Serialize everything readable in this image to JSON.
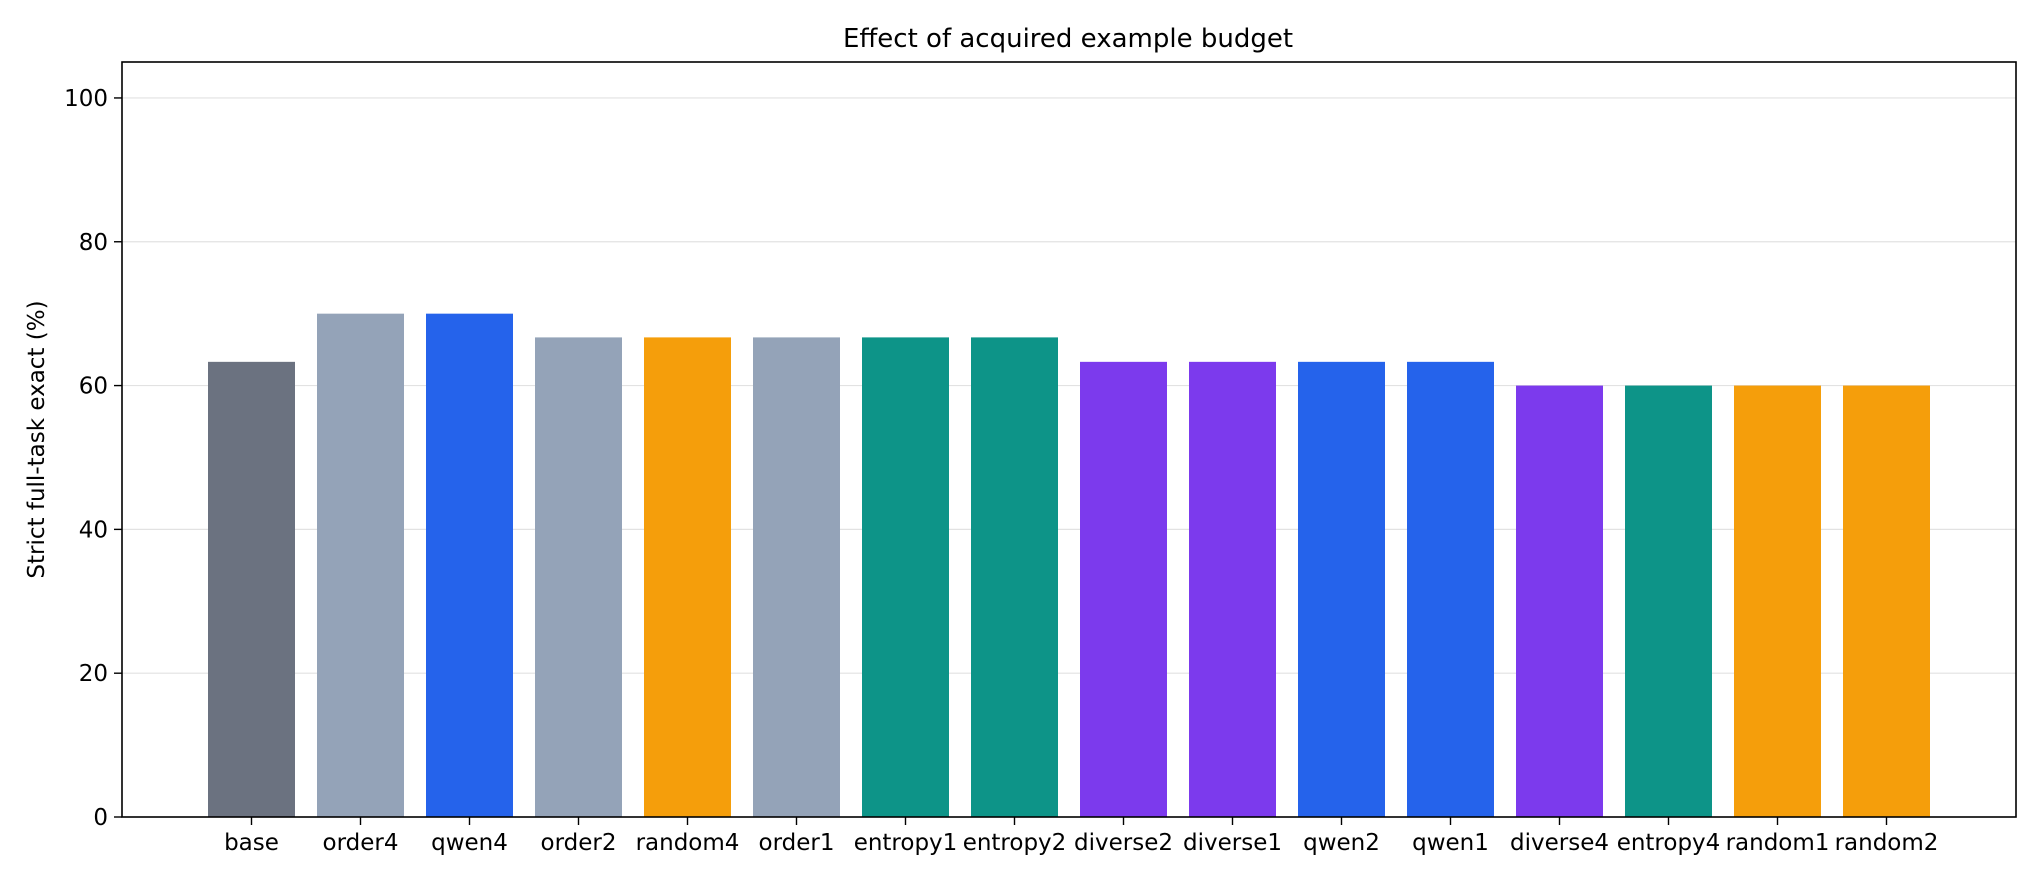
{
  "chart_data": {
    "type": "bar",
    "title": "Effect of acquired example budget",
    "xlabel": "",
    "ylabel": "Strict full-task exact (%)",
    "ylim": [
      0,
      105
    ],
    "yticks": [
      0,
      20,
      40,
      60,
      80,
      100
    ],
    "grid": "horizontal",
    "categories": [
      "base",
      "order4",
      "qwen4",
      "order2",
      "random4",
      "order1",
      "entropy1",
      "entropy2",
      "diverse2",
      "diverse1",
      "qwen2",
      "qwen1",
      "diverse4",
      "entropy4",
      "random1",
      "random2"
    ],
    "values": [
      63.3,
      70.0,
      70.0,
      66.7,
      66.7,
      66.7,
      66.7,
      66.7,
      63.3,
      63.3,
      63.3,
      63.3,
      60.0,
      60.0,
      60.0,
      60.0
    ],
    "colors": [
      "#6b7280",
      "#94a3b8",
      "#2563eb",
      "#94a3b8",
      "#f59e0b",
      "#94a3b8",
      "#0d9488",
      "#0d9488",
      "#7c3aed",
      "#7c3aed",
      "#2563eb",
      "#2563eb",
      "#7c3aed",
      "#0d9488",
      "#f59e0b",
      "#f59e0b"
    ]
  }
}
